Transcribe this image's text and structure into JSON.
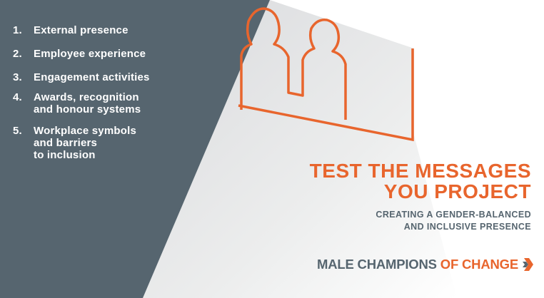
{
  "colors": {
    "slate": "#56656f",
    "orange": "#e8652d",
    "light_grey": "#e4e5e8"
  },
  "list": [
    {
      "num": "1.",
      "text": "External presence"
    },
    {
      "num": "2.",
      "text": "Employee experience"
    },
    {
      "num": "3.",
      "text": "Engagement activities"
    },
    {
      "num": "4.",
      "text": "Awards, recognition\nand honour systems"
    },
    {
      "num": "5.",
      "text": "Workplace symbols\nand barriers\nto inclusion"
    }
  ],
  "headline": {
    "line1": "TEST THE MESSAGES",
    "line2": "YOU PROJECT"
  },
  "subheadline": {
    "line1": "CREATING A GENDER-BALANCED",
    "line2": "AND INCLUSIVE PRESENCE"
  },
  "brand": {
    "part1": "MALE CHAMPIONS",
    "part2": "OF CHANGE",
    "mark_icon": "chevron-logo-icon"
  }
}
